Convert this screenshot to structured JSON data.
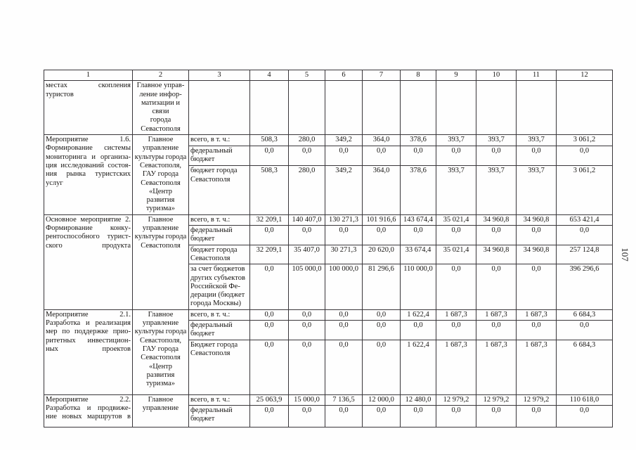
{
  "page": {
    "number": "107"
  },
  "table": {
    "column_headers": [
      "1",
      "2",
      "3",
      "4",
      "5",
      "6",
      "7",
      "8",
      "9",
      "10",
      "11",
      "12"
    ],
    "groups": [
      {
        "activity": "местах скопления\nтуристов",
        "executor": "Главное управ-\nление инфор-\nматизации и связи\nгорода\nСевастополя",
        "rows": [
          {
            "budget": "",
            "values": [
              "",
              "",
              "",
              "",
              "",
              "",
              "",
              "",
              ""
            ]
          }
        ]
      },
      {
        "activity": "Мероприятие 1.6.\nФормирование системы\nмониторинга и организа-\nция исследований состоя-\nния рынка туристских\nуслуг",
        "executor": "Главное\nуправление\nкультуры города\nСевастополя,\nГАУ города\nСевастополя\n«Центр развития\nтуризма»",
        "rows": [
          {
            "budget": "всего, в т. ч.:",
            "values": [
              "508,3",
              "280,0",
              "349,2",
              "364,0",
              "378,6",
              "393,7",
              "393,7",
              "393,7",
              "3 061,2"
            ]
          },
          {
            "budget": "федеральный\nбюджет",
            "values": [
              "0,0",
              "0,0",
              "0,0",
              "0,0",
              "0,0",
              "0,0",
              "0,0",
              "0,0",
              "0,0"
            ]
          },
          {
            "budget": "бюджет города\nСевастополя",
            "values": [
              "508,3",
              "280,0",
              "349,2",
              "364,0",
              "378,6",
              "393,7",
              "393,7",
              "393,7",
              "3 061,2"
            ]
          }
        ]
      },
      {
        "activity": "Основное мероприятие 2.\nФормирование конку-\nрентоспособного турист-\nского продукта",
        "executor": "Главное\nуправление\nкультуры города\nСевастополя",
        "rows": [
          {
            "budget": "всего, в т. ч.:",
            "values": [
              "32 209,1",
              "140 407,0",
              "130 271,3",
              "101 916,6",
              "143 674,4",
              "35 021,4",
              "34 960,8",
              "34 960,8",
              "653 421,4"
            ]
          },
          {
            "budget": "федеральный\nбюджет",
            "values": [
              "0,0",
              "0,0",
              "0,0",
              "0,0",
              "0,0",
              "0,0",
              "0,0",
              "0,0",
              "0,0"
            ]
          },
          {
            "budget": "бюджет города\nСевастополя",
            "values": [
              "32 209,1",
              "35 407,0",
              "30 271,3",
              "20 620,0",
              "33 674,4",
              "35 021,4",
              "34 960,8",
              "34 960,8",
              "257 124,8"
            ]
          },
          {
            "budget": "за счет бюджетов\nдругих субъектов\nРоссийской Фе-\nдерации (бюджет\nгорода Москвы)",
            "values": [
              "0,0",
              "105 000,0",
              "100 000,0",
              "81 296,6",
              "110 000,0",
              "0,0",
              "0,0",
              "0,0",
              "396 296,6"
            ]
          }
        ]
      },
      {
        "activity": "Мероприятие 2.1.\nРазработка и реализация\nмер по поддержке прио-\nритетных инвестицион-\nных проектов",
        "executor": "Главное\nуправление\nкультуры города\nСевастополя,\nГАУ города\nСевастополя\n«Центр развития\nтуризма»",
        "rows": [
          {
            "budget": "всего, в т. ч.:",
            "values": [
              "0,0",
              "0,0",
              "0,0",
              "0,0",
              "1 622,4",
              "1 687,3",
              "1 687,3",
              "1 687,3",
              "6 684,3"
            ]
          },
          {
            "budget": "федеральный\nбюджет",
            "values": [
              "0,0",
              "0,0",
              "0,0",
              "0,0",
              "0,0",
              "0,0",
              "0,0",
              "0,0",
              "0,0"
            ]
          },
          {
            "budget": "Бюджет города\nСевастополя",
            "values": [
              "0,0",
              "0,0",
              "0,0",
              "0,0",
              "1 622,4",
              "1 687,3",
              "1 687,3",
              "1 687,3",
              "6 684,3"
            ]
          }
        ]
      },
      {
        "activity": "Мероприятие 2.2.\nРазработка и продвиже-\nние новых маршрутов в",
        "executor": "Главное\nуправление",
        "rows": [
          {
            "budget": "всего, в т. ч.:",
            "values": [
              "25 063,9",
              "15 000,0",
              "7 136,5",
              "12 000,0",
              "12 480,0",
              "12 979,2",
              "12 979,2",
              "12 979,2",
              "110 618,0"
            ]
          },
          {
            "budget": "федеральный\nбюджет",
            "values": [
              "0,0",
              "0,0",
              "0,0",
              "0,0",
              "0,0",
              "0,0",
              "0,0",
              "0,0",
              "0,0"
            ]
          }
        ]
      }
    ]
  }
}
